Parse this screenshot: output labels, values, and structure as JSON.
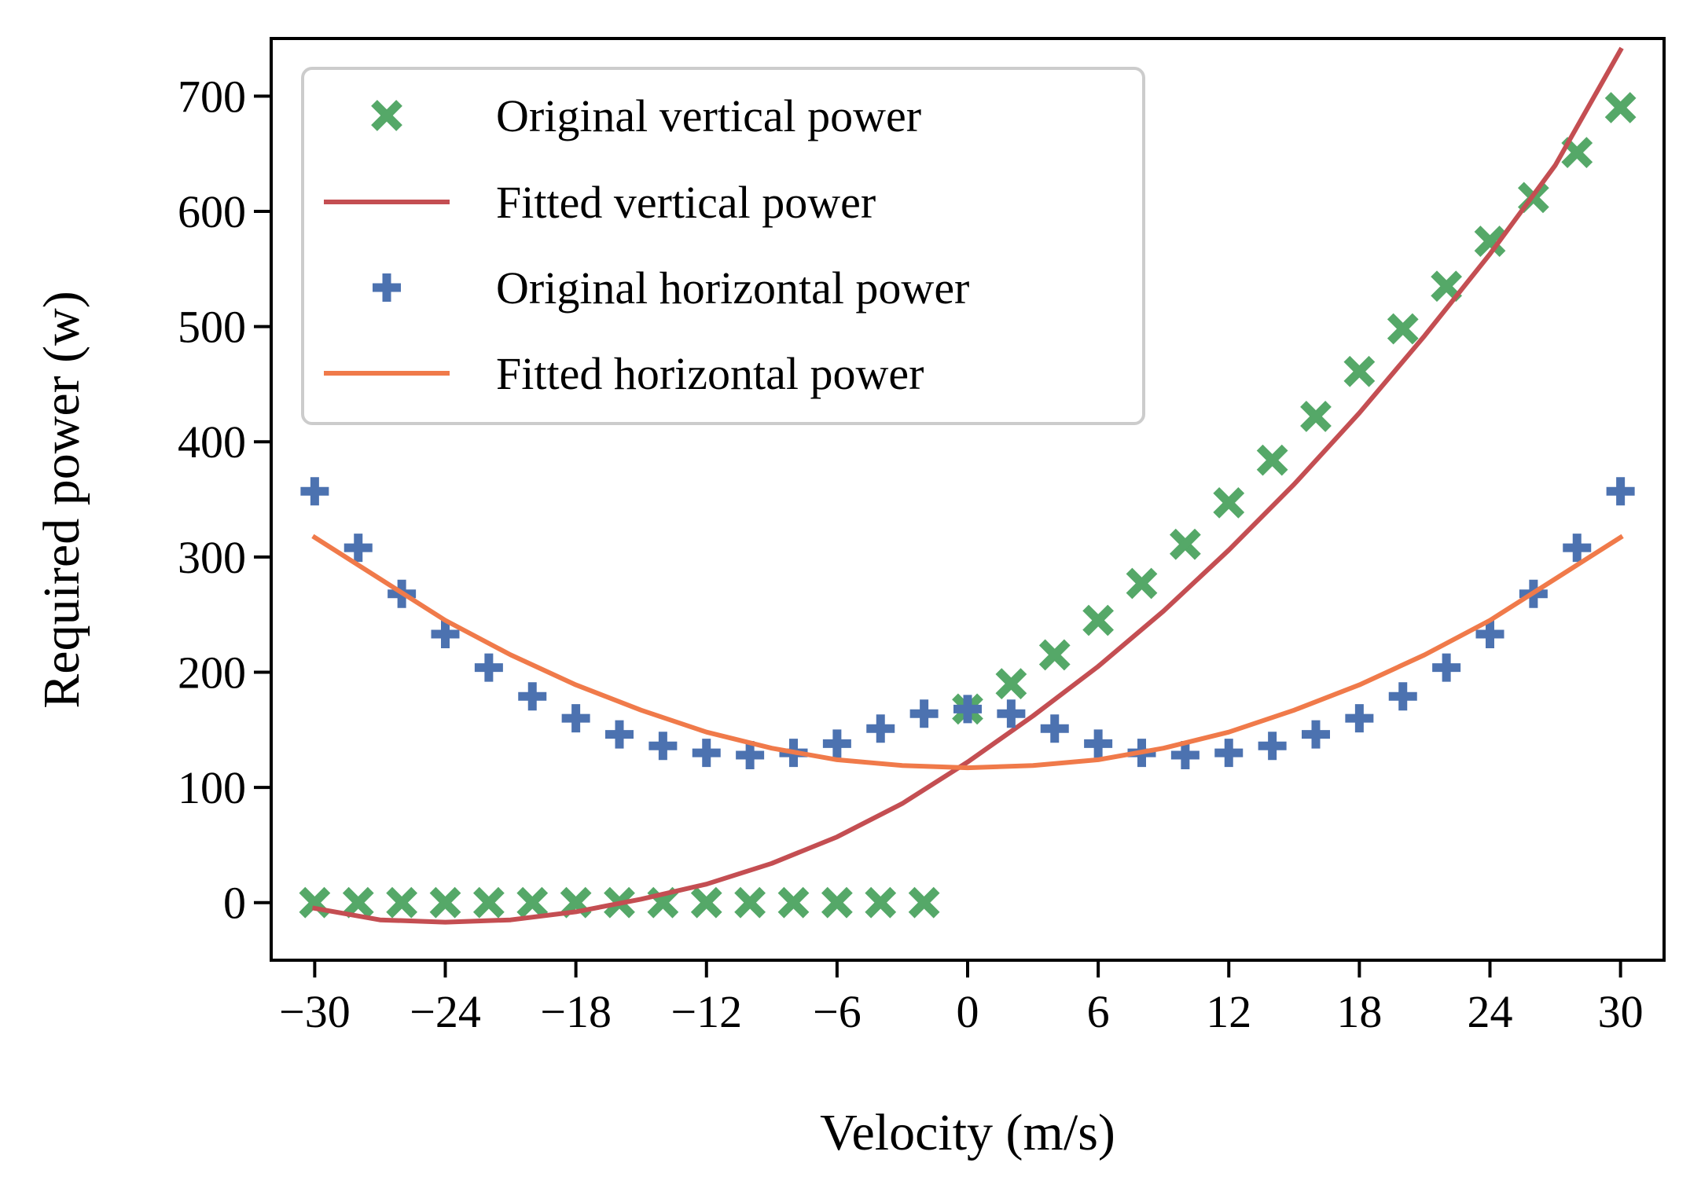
{
  "chart_data": {
    "type": "scatter+line",
    "title": "",
    "xlabel": "Velocity (m/s)",
    "ylabel": "Required power (w)",
    "xlim": [
      -32,
      32
    ],
    "ylim": [
      -50,
      750
    ],
    "xticks": [
      -30,
      -24,
      -18,
      -12,
      -6,
      0,
      6,
      12,
      18,
      24,
      30
    ],
    "xtick_labels": [
      "−30",
      "−24",
      "−18",
      "−12",
      "−6",
      "0",
      "6",
      "12",
      "18",
      "24",
      "30"
    ],
    "yticks": [
      0,
      100,
      200,
      300,
      400,
      500,
      600,
      700
    ],
    "ytick_labels": [
      "0",
      "100",
      "200",
      "300",
      "400",
      "500",
      "600",
      "700"
    ],
    "grid": false,
    "legend_position": "top-left",
    "series": [
      {
        "name": "Original vertical power",
        "kind": "scatter",
        "marker": "x",
        "color": "#55a868",
        "x": [
          -30,
          -28,
          -26,
          -24,
          -22,
          -20,
          -18,
          -16,
          -14,
          -12,
          -10,
          -8,
          -6,
          -4,
          -2,
          0,
          2,
          4,
          6,
          8,
          10,
          12,
          14,
          16,
          18,
          20,
          22,
          24,
          26,
          28,
          30
        ],
        "y": [
          0,
          0,
          0,
          0,
          0,
          0,
          0,
          0,
          0,
          0,
          0,
          0,
          0,
          0,
          0,
          168,
          190,
          215,
          245,
          277,
          311,
          347,
          384,
          422,
          461,
          498,
          535,
          574,
          612,
          651,
          690
        ]
      },
      {
        "name": "Fitted vertical power",
        "kind": "line",
        "color": "#c44e52",
        "x": [
          -30,
          -27,
          -24,
          -21,
          -18,
          -15,
          -12,
          -9,
          -6,
          -3,
          0,
          3,
          6,
          9,
          12,
          15,
          18,
          21,
          24,
          27,
          30
        ],
        "y": [
          -5,
          -15,
          -17,
          -15,
          -8,
          3,
          16,
          34,
          57,
          86,
          122,
          162,
          205,
          253,
          306,
          363,
          425,
          492,
          563,
          640,
          740
        ]
      },
      {
        "name": "Original horizontal power",
        "kind": "scatter",
        "marker": "+",
        "color": "#4c72b0",
        "x": [
          -30,
          -28,
          -26,
          -24,
          -22,
          -20,
          -18,
          -16,
          -14,
          -12,
          -10,
          -8,
          -6,
          -4,
          -2,
          0,
          2,
          4,
          6,
          8,
          10,
          12,
          14,
          16,
          18,
          20,
          22,
          24,
          26,
          28,
          30
        ],
        "y": [
          357,
          308,
          268,
          233,
          204,
          179,
          160,
          146,
          136,
          130,
          128,
          130,
          138,
          151,
          164,
          168,
          164,
          151,
          138,
          130,
          128,
          130,
          136,
          146,
          160,
          179,
          204,
          233,
          268,
          308,
          357
        ]
      },
      {
        "name": "Fitted horizontal power",
        "kind": "line",
        "color": "#f07a4a",
        "x": [
          -30,
          -27,
          -24,
          -21,
          -18,
          -15,
          -12,
          -9,
          -6,
          -3,
          0,
          3,
          6,
          9,
          12,
          15,
          18,
          21,
          24,
          27,
          30
        ],
        "y": [
          317,
          281,
          245,
          215,
          189,
          167,
          148,
          134,
          124,
          119,
          117,
          119,
          124,
          134,
          148,
          167,
          189,
          215,
          245,
          281,
          317
        ]
      }
    ]
  }
}
